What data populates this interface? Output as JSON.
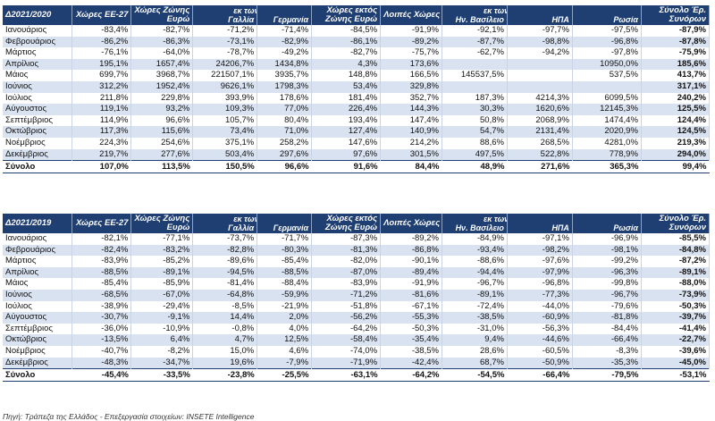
{
  "table1": {
    "headers": {
      "period": "Δ2021/2020",
      "eu27": "Χώρες ΕΕ-27",
      "euro_zone": "Χώρες Ζώνης Ευρώ",
      "of_which_1": "εκ των οποίων",
      "france": "Γαλλία",
      "germany": "Γερμανία",
      "outside_euro": "Χώρες εκτός Ζώνης Ευρώ",
      "other": "Λοιπές Χώρες",
      "of_which_2": "εκ των οποίων",
      "uk": "Ην. Βασίλειο",
      "usa": "ΗΠΑ",
      "russia": "Ρωσία",
      "total": "Σύνολο Έρ. Συνόρων"
    },
    "rows": [
      [
        "Ιανουάριος",
        "-83,4%",
        "-82,7%",
        "-71,2%",
        "-71,4%",
        "-84,5%",
        "-91,9%",
        "-92,1%",
        "-97,7%",
        "-97,5%",
        "-87,9%"
      ],
      [
        "Φεβρουάριος",
        "-86,2%",
        "-86,3%",
        "-73,1%",
        "-82,9%",
        "-86,1%",
        "-89,2%",
        "-87,7%",
        "-98,8%",
        "-96,8%",
        "-87,8%"
      ],
      [
        "Μάρτιος",
        "-76,1%",
        "-64,0%",
        "-78,7%",
        "-49,2%",
        "-82,7%",
        "-75,7%",
        "-62,7%",
        "-94,2%",
        "-97,8%",
        "-75,9%"
      ],
      [
        "Απρίλιος",
        "195,1%",
        "1657,4%",
        "24206,7%",
        "1434,8%",
        "4,3%",
        "173,6%",
        "",
        "",
        "10950,0%",
        "185,6%"
      ],
      [
        "Μάιος",
        "699,7%",
        "3968,7%",
        "221507,1%",
        "3935,7%",
        "148,8%",
        "166,5%",
        "145537,5%",
        "",
        "537,5%",
        "413,7%"
      ],
      [
        "Ιούνιος",
        "312,2%",
        "1952,4%",
        "9626,1%",
        "1798,3%",
        "53,4%",
        "329,8%",
        "",
        "",
        "",
        "317,1%"
      ],
      [
        "Ιούλιος",
        "211,8%",
        "229,8%",
        "393,9%",
        "178,6%",
        "181,4%",
        "352,7%",
        "187,3%",
        "4214,3%",
        "6099,5%",
        "240,2%"
      ],
      [
        "Αύγουστος",
        "119,1%",
        "93,2%",
        "109,3%",
        "77,0%",
        "226,4%",
        "144,3%",
        "30,3%",
        "1620,6%",
        "12145,3%",
        "125,5%"
      ],
      [
        "Σεπτέμβριος",
        "114,9%",
        "96,6%",
        "105,7%",
        "80,4%",
        "193,4%",
        "147,4%",
        "50,8%",
        "2068,9%",
        "1474,4%",
        "124,4%"
      ],
      [
        "Οκτώβριος",
        "117,3%",
        "115,6%",
        "73,4%",
        "71,0%",
        "127,4%",
        "140,9%",
        "54,7%",
        "2131,4%",
        "2020,9%",
        "124,5%"
      ],
      [
        "Νοέμβριος",
        "224,3%",
        "254,6%",
        "375,1%",
        "258,2%",
        "147,6%",
        "214,2%",
        "88,6%",
        "268,5%",
        "4281,0%",
        "219,3%"
      ],
      [
        "Δεκέμβριος",
        "219,7%",
        "277,6%",
        "503,4%",
        "297,6%",
        "97,6%",
        "301,5%",
        "497,5%",
        "522,8%",
        "778,9%",
        "294,0%"
      ]
    ],
    "total": [
      "Σύνολο",
      "107,0%",
      "113,5%",
      "150,5%",
      "96,6%",
      "91,6%",
      "84,4%",
      "48,9%",
      "271,6%",
      "365,3%",
      "99,4%"
    ]
  },
  "table2": {
    "headers": {
      "period": "Δ2021/2019",
      "eu27": "Χώρες ΕΕ-27",
      "euro_zone": "Χώρες Ζώνης Ευρώ",
      "of_which_1": "εκ των οποίων",
      "france": "Γαλλία",
      "germany": "Γερμανία",
      "outside_euro": "Χώρες εκτός Ζώνης Ευρώ",
      "other": "Λοιπές Χώρες",
      "of_which_2": "εκ των οποίων",
      "uk": "Ην. Βασίλειο",
      "usa": "ΗΠΑ",
      "russia": "Ρωσία",
      "total": "Σύνολο Έρ. Συνόρων"
    },
    "rows": [
      [
        "Ιανουάριος",
        "-82,1%",
        "-77,1%",
        "-73,7%",
        "-71,7%",
        "-87,3%",
        "-89,2%",
        "-84,9%",
        "-97,1%",
        "-96,9%",
        "-85,5%"
      ],
      [
        "Φεβρουάριος",
        "-82,4%",
        "-83,2%",
        "-82,8%",
        "-80,3%",
        "-81,3%",
        "-86,8%",
        "-93,4%",
        "-98,2%",
        "-98,1%",
        "-84,8%"
      ],
      [
        "Μάρτιος",
        "-83,9%",
        "-85,2%",
        "-89,6%",
        "-85,4%",
        "-82,0%",
        "-90,1%",
        "-88,6%",
        "-97,6%",
        "-99,2%",
        "-87,2%"
      ],
      [
        "Απρίλιος",
        "-88,5%",
        "-89,1%",
        "-94,5%",
        "-88,5%",
        "-87,0%",
        "-89,4%",
        "-94,4%",
        "-97,9%",
        "-96,3%",
        "-89,1%"
      ],
      [
        "Μάιος",
        "-85,4%",
        "-85,9%",
        "-81,4%",
        "-88,4%",
        "-83,9%",
        "-91,9%",
        "-96,7%",
        "-96,8%",
        "-99,8%",
        "-88,0%"
      ],
      [
        "Ιούνιος",
        "-68,5%",
        "-67,0%",
        "-64,8%",
        "-59,9%",
        "-71,2%",
        "-81,6%",
        "-89,1%",
        "-77,3%",
        "-96,7%",
        "-73,9%"
      ],
      [
        "Ιούλιος",
        "-38,9%",
        "-29,4%",
        "-8,5%",
        "-21,9%",
        "-51,8%",
        "-67,1%",
        "-72,4%",
        "-44,0%",
        "-79,6%",
        "-50,3%"
      ],
      [
        "Αύγουστος",
        "-30,7%",
        "-9,1%",
        "14,4%",
        "2,0%",
        "-56,2%",
        "-55,3%",
        "-38,5%",
        "-60,9%",
        "-81,8%",
        "-39,7%"
      ],
      [
        "Σεπτέμβριος",
        "-36,0%",
        "-10,9%",
        "-0,8%",
        "4,0%",
        "-64,2%",
        "-50,3%",
        "-31,0%",
        "-56,3%",
        "-84,4%",
        "-41,4%"
      ],
      [
        "Οκτώβριος",
        "-13,5%",
        "6,4%",
        "4,7%",
        "12,5%",
        "-58,4%",
        "-35,4%",
        "9,4%",
        "-44,6%",
        "-66,4%",
        "-22,7%"
      ],
      [
        "Νοέμβριος",
        "-40,7%",
        "-8,2%",
        "15,0%",
        "4,6%",
        "-74,0%",
        "-38,5%",
        "28,6%",
        "-60,5%",
        "-8,3%",
        "-39,6%"
      ],
      [
        "Δεκέμβριος",
        "-48,3%",
        "-34,7%",
        "19,6%",
        "-7,9%",
        "-71,9%",
        "-42,4%",
        "68,7%",
        "-50,9%",
        "-35,3%",
        "-45,0%"
      ]
    ],
    "total": [
      "Σύνολο",
      "-45,4%",
      "-33,5%",
      "-23,8%",
      "-25,5%",
      "-63,1%",
      "-64,2%",
      "-54,5%",
      "-66,4%",
      "-79,5%",
      "-53,1%"
    ]
  },
  "source": "Πηγή: Τράπεζα της Ελλάδος - Επεξεργασία στοιχείων: INSETE Intelligence",
  "colors": {
    "header_bg": "#1f3f73",
    "row_shade": "#d9e2f1"
  }
}
